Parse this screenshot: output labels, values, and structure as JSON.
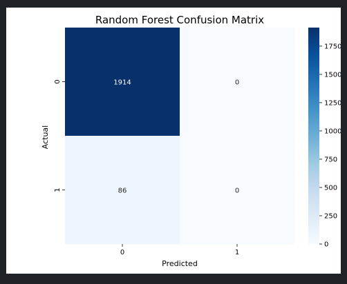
{
  "chart_data": {
    "type": "heatmap",
    "title": "Random Forest Confusion Matrix",
    "xlabel": "Predicted",
    "ylabel": "Actual",
    "x_categories": [
      "0",
      "1"
    ],
    "y_categories": [
      "0",
      "1"
    ],
    "values": [
      [
        1914,
        0
      ],
      [
        86,
        0
      ]
    ],
    "colormap": "Blues",
    "colorbar": {
      "min": 0,
      "max": 1914,
      "ticks": [
        0,
        250,
        500,
        750,
        1000,
        1250,
        1500,
        1750
      ]
    },
    "colors": {
      "low": "#f7fbff",
      "high": "#08306b",
      "annotation_dark": "#262626",
      "annotation_light": "#ffffff"
    }
  }
}
